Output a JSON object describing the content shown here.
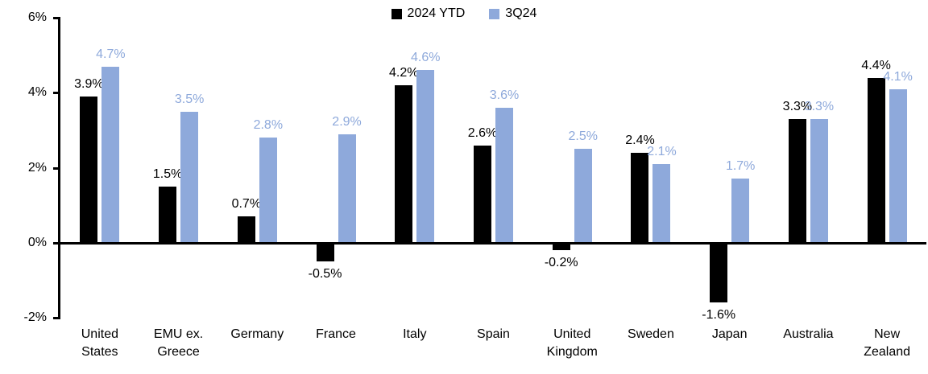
{
  "chart_data": {
    "type": "bar",
    "title": "",
    "xlabel": "",
    "ylabel": "",
    "grid": false,
    "legend_position": "top-center",
    "axis_color": "#000000",
    "background_color": "#ffffff",
    "ylim": [
      -2,
      6
    ],
    "yticks": [
      {
        "value": 6,
        "label": "6%"
      },
      {
        "value": 4,
        "label": "4%"
      },
      {
        "value": 2,
        "label": "2%"
      },
      {
        "value": 0,
        "label": "0%"
      },
      {
        "value": -2,
        "label": "-2%"
      }
    ],
    "categories": [
      "United States",
      "EMU ex. Greece",
      "Germany",
      "France",
      "Italy",
      "Spain",
      "United Kingdom",
      "Sweden",
      "Japan",
      "Australia",
      "New Zealand"
    ],
    "series": [
      {
        "name": "2024 YTD",
        "color": "#000000",
        "label_color": "#000000",
        "values": [
          3.9,
          1.5,
          0.7,
          -0.5,
          4.2,
          2.6,
          -0.2,
          2.4,
          -1.6,
          3.3,
          4.4
        ],
        "labels": [
          "3.9%",
          "1.5%",
          "0.7%",
          "-0.5%",
          "4.2%",
          "2.6%",
          "-0.2%",
          "2.4%",
          "-1.6%",
          "3.3%",
          "4.4%"
        ]
      },
      {
        "name": "3Q24",
        "color": "#8EA9DB",
        "label_color": "#8EA9DB",
        "values": [
          4.7,
          3.5,
          2.8,
          2.9,
          4.6,
          3.6,
          2.5,
          2.1,
          1.7,
          3.3,
          4.1
        ],
        "labels": [
          "4.7%",
          "3.5%",
          "2.8%",
          "2.9%",
          "4.6%",
          "3.6%",
          "2.5%",
          "2.1%",
          "1.7%",
          "3.3%",
          "4.1%"
        ]
      }
    ]
  }
}
